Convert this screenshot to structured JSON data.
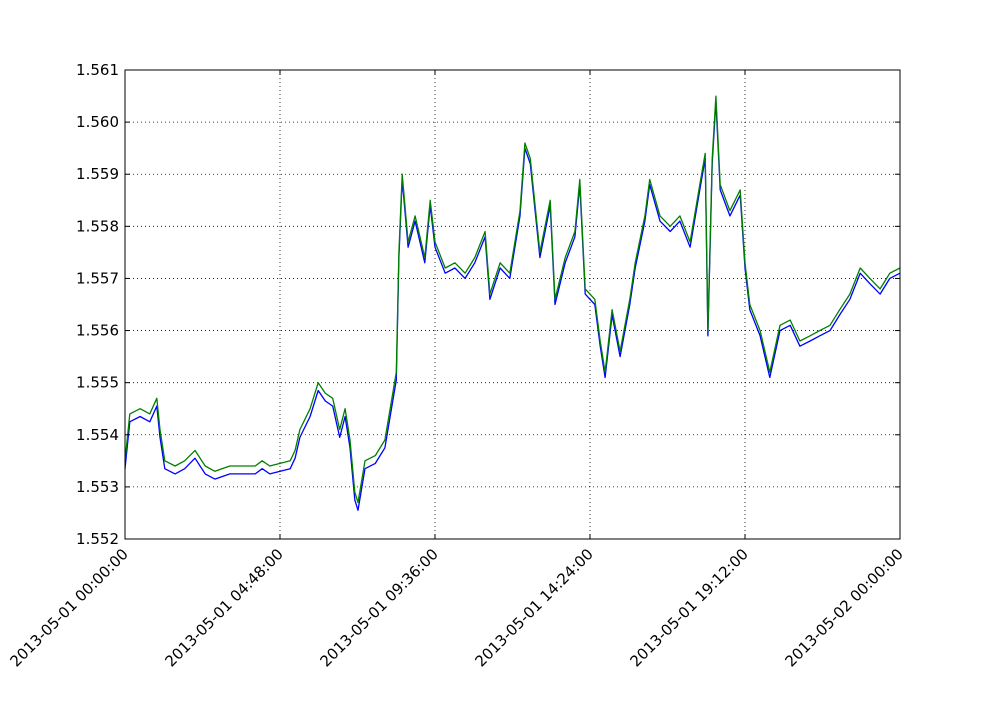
{
  "chart_data": {
    "type": "line",
    "title": "",
    "xlabel": "",
    "ylabel": "",
    "ylim": [
      1.552,
      1.561
    ],
    "xlim": [
      "2013-05-01 00:00:00",
      "2013-05-02 00:00:00"
    ],
    "grid": true,
    "yticks": [
      "1.552",
      "1.553",
      "1.554",
      "1.555",
      "1.556",
      "1.557",
      "1.558",
      "1.559",
      "1.560",
      "1.561"
    ],
    "xticks": [
      {
        "t": "2013-05-01 00:00",
        "label": "2013-05-01 00:00:00"
      },
      {
        "t": "2013-05-01 04:48",
        "label": "2013-05-01 04:48:00"
      },
      {
        "t": "2013-05-01 09:36",
        "label": "2013-05-01 09:36:00"
      },
      {
        "t": "2013-05-01 14:24",
        "label": "2013-05-01 14:24:00"
      },
      {
        "t": "2013-05-01 19:12",
        "label": "2013-05-01 19:12:00"
      },
      {
        "t": "2013-05-02 00:00",
        "label": "2013-05-02 00:00:00"
      }
    ],
    "x": [
      "2013-05-01 00:00",
      "2013-05-01 00:09",
      "2013-05-01 00:28",
      "2013-05-01 00:46",
      "2013-05-01 00:59",
      "2013-05-01 01:05",
      "2013-05-01 01:14",
      "2013-05-01 01:33",
      "2013-05-01 01:51",
      "2013-05-01 02:10",
      "2013-05-01 02:29",
      "2013-05-01 02:47",
      "2013-05-01 03:15",
      "2013-05-01 03:43",
      "2013-05-01 04:02",
      "2013-05-01 04:15",
      "2013-05-01 04:29",
      "2013-05-01 05:07",
      "2013-05-01 05:16",
      "2013-05-01 05:25",
      "2013-05-01 05:44",
      "2013-05-01 05:59",
      "2013-05-01 06:12",
      "2013-05-01 06:26",
      "2013-05-01 06:39",
      "2013-05-01 06:49",
      "2013-05-01 06:58",
      "2013-05-01 07:07",
      "2013-05-01 07:13",
      "2013-05-01 07:26",
      "2013-05-01 07:45",
      "2013-05-01 08:03",
      "2013-05-01 08:16",
      "2013-05-01 08:24",
      "2013-05-01 08:29",
      "2013-05-01 08:35",
      "2013-05-01 08:46",
      "2013-05-01 08:59",
      "2013-05-01 09:17",
      "2013-05-01 09:27",
      "2013-05-01 09:36",
      "2013-05-01 09:55",
      "2013-05-01 10:13",
      "2013-05-01 10:32",
      "2013-05-01 10:50",
      "2013-05-01 11:09",
      "2013-05-01 11:18",
      "2013-05-01 11:37",
      "2013-05-01 11:55",
      "2013-05-01 12:14",
      "2013-05-01 12:23",
      "2013-05-01 12:33",
      "2013-05-01 12:51",
      "2013-05-01 13:10",
      "2013-05-01 13:19",
      "2013-05-01 13:38",
      "2013-05-01 13:56",
      "2013-05-01 14:05",
      "2013-05-01 14:15",
      "2013-05-01 14:33",
      "2013-05-01 14:43",
      "2013-05-01 14:52",
      "2013-05-01 15:05",
      "2013-05-01 15:20",
      "2013-05-01 15:38",
      "2013-05-01 15:48",
      "2013-05-01 16:06",
      "2013-05-01 16:15",
      "2013-05-01 16:34",
      "2013-05-01 16:53",
      "2013-05-01 17:11",
      "2013-05-01 17:30",
      "2013-05-01 17:48",
      "2013-05-01 17:58",
      "2013-05-01 18:03",
      "2013-05-01 18:11",
      "2013-05-01 18:18",
      "2013-05-01 18:26",
      "2013-05-01 18:44",
      "2013-05-01 19:03",
      "2013-05-01 19:12",
      "2013-05-01 19:21",
      "2013-05-01 19:40",
      "2013-05-01 19:58",
      "2013-05-01 20:17",
      "2013-05-01 20:36",
      "2013-05-01 20:54",
      "2013-05-01 21:13",
      "2013-05-01 21:31",
      "2013-05-01 21:50",
      "2013-05-01 22:08",
      "2013-05-01 22:27",
      "2013-05-01 22:46",
      "2013-05-01 23:04",
      "2013-05-01 23:23",
      "2013-05-01 23:41",
      "2013-05-02 00:00"
    ],
    "series": [
      {
        "color": "#0000ff",
        "values": [
          1.55335,
          1.55425,
          1.55435,
          1.55425,
          1.55455,
          1.55395,
          1.55335,
          1.55325,
          1.55335,
          1.55355,
          1.55325,
          1.55315,
          1.55325,
          1.55325,
          1.55325,
          1.55335,
          1.55325,
          1.55335,
          1.55355,
          1.55395,
          1.55435,
          1.55485,
          1.55465,
          1.55455,
          1.55395,
          1.55435,
          1.55375,
          1.55275,
          1.55255,
          1.55335,
          1.55345,
          1.55375,
          1.55455,
          1.55505,
          1.5574,
          1.5589,
          1.5576,
          1.5581,
          1.5573,
          1.5584,
          1.5576,
          1.5571,
          1.5572,
          1.557,
          1.5573,
          1.5578,
          1.5566,
          1.5572,
          1.557,
          1.5582,
          1.5595,
          1.5592,
          1.5574,
          1.5584,
          1.5565,
          1.5573,
          1.5578,
          1.5588,
          1.5567,
          1.5565,
          1.5557,
          1.5551,
          1.5563,
          1.5555,
          1.5565,
          1.5572,
          1.5581,
          1.5588,
          1.5581,
          1.5579,
          1.5581,
          1.5576,
          1.5587,
          1.5593,
          1.5559,
          1.5592,
          1.5604,
          1.5587,
          1.5582,
          1.5586,
          1.5572,
          1.5564,
          1.5559,
          1.5551,
          1.556,
          1.5561,
          1.5557,
          1.5558,
          1.5559,
          1.556,
          1.5563,
          1.5566,
          1.5571,
          1.5569,
          1.5567,
          1.557,
          1.5571
        ]
      },
      {
        "color": "#008000",
        "values": [
          1.5535,
          1.5544,
          1.5545,
          1.5544,
          1.5547,
          1.5541,
          1.5535,
          1.5534,
          1.5535,
          1.5537,
          1.5534,
          1.5533,
          1.5534,
          1.5534,
          1.5534,
          1.5535,
          1.5534,
          1.5535,
          1.5537,
          1.5541,
          1.5545,
          1.555,
          1.5548,
          1.5547,
          1.5541,
          1.5545,
          1.5539,
          1.5529,
          1.5527,
          1.5535,
          1.5536,
          1.5539,
          1.5547,
          1.5552,
          1.5575,
          1.559,
          1.5577,
          1.5582,
          1.5574,
          1.5585,
          1.5577,
          1.5572,
          1.5573,
          1.5571,
          1.5574,
          1.5579,
          1.5567,
          1.5573,
          1.5571,
          1.5583,
          1.5596,
          1.5593,
          1.5575,
          1.5585,
          1.5566,
          1.5574,
          1.5579,
          1.5589,
          1.5568,
          1.5566,
          1.5558,
          1.5552,
          1.5564,
          1.5556,
          1.5566,
          1.5573,
          1.5582,
          1.5589,
          1.5582,
          1.558,
          1.5582,
          1.5577,
          1.5588,
          1.5594,
          1.556,
          1.5593,
          1.5605,
          1.5588,
          1.5583,
          1.5587,
          1.5573,
          1.5565,
          1.556,
          1.5552,
          1.5561,
          1.5562,
          1.5558,
          1.5559,
          1.556,
          1.5561,
          1.5564,
          1.5567,
          1.5572,
          1.557,
          1.5568,
          1.5571,
          1.5572
        ]
      }
    ]
  }
}
